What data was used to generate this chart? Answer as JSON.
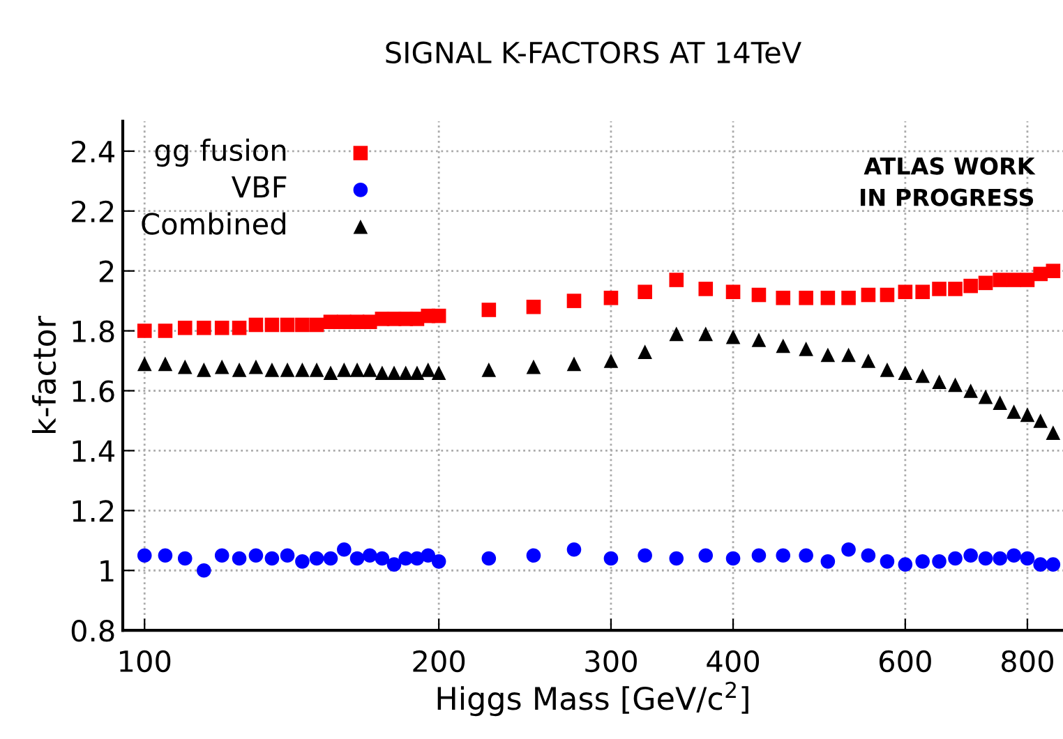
{
  "chart_data": {
    "type": "scatter",
    "title": "SIGNAL K-FACTORS AT 14TeV",
    "xlabel": "Higgs Mass [GeV/c$^{2}$]",
    "ylabel": "k-factor",
    "x": [
      100,
      105,
      110,
      115,
      120,
      125,
      130,
      135,
      140,
      145,
      150,
      155,
      160,
      165,
      170,
      175,
      180,
      185,
      190,
      195,
      200,
      225,
      250,
      275,
      300,
      325,
      350,
      375,
      400,
      425,
      450,
      475,
      500,
      525,
      550,
      575,
      600,
      625,
      650,
      675,
      700,
      725,
      750,
      775,
      800,
      825,
      850
    ],
    "series": [
      {
        "name": "gg fusion",
        "color": "#ff0000",
        "marker": "square",
        "values": [
          1.8,
          1.8,
          1.81,
          1.81,
          1.81,
          1.81,
          1.82,
          1.82,
          1.82,
          1.82,
          1.82,
          1.83,
          1.83,
          1.83,
          1.83,
          1.84,
          1.84,
          1.84,
          1.84,
          1.85,
          1.85,
          1.87,
          1.88,
          1.9,
          1.91,
          1.93,
          1.97,
          1.94,
          1.93,
          1.92,
          1.91,
          1.91,
          1.91,
          1.91,
          1.92,
          1.92,
          1.93,
          1.93,
          1.94,
          1.94,
          1.95,
          1.96,
          1.97,
          1.97,
          1.97,
          1.99,
          2.0
        ]
      },
      {
        "name": "VBF",
        "color": "#0000ff",
        "marker": "circle",
        "values": [
          1.05,
          1.05,
          1.04,
          1.0,
          1.05,
          1.04,
          1.05,
          1.04,
          1.05,
          1.03,
          1.04,
          1.04,
          1.07,
          1.04,
          1.05,
          1.04,
          1.02,
          1.04,
          1.04,
          1.05,
          1.03,
          1.04,
          1.05,
          1.07,
          1.04,
          1.05,
          1.04,
          1.05,
          1.04,
          1.05,
          1.05,
          1.05,
          1.03,
          1.07,
          1.05,
          1.03,
          1.02,
          1.03,
          1.03,
          1.04,
          1.05,
          1.04,
          1.04,
          1.05,
          1.04,
          1.02,
          1.02
        ]
      },
      {
        "name": "Combined",
        "color": "#000000",
        "marker": "triangle",
        "values": [
          1.69,
          1.69,
          1.68,
          1.67,
          1.68,
          1.67,
          1.68,
          1.67,
          1.67,
          1.67,
          1.67,
          1.66,
          1.67,
          1.67,
          1.67,
          1.66,
          1.66,
          1.66,
          1.66,
          1.67,
          1.66,
          1.67,
          1.68,
          1.69,
          1.7,
          1.73,
          1.79,
          1.79,
          1.78,
          1.77,
          1.75,
          1.74,
          1.72,
          1.72,
          1.7,
          1.67,
          1.66,
          1.65,
          1.63,
          1.62,
          1.6,
          1.58,
          1.56,
          1.53,
          1.52,
          1.5,
          1.46
        ]
      }
    ],
    "log": "x",
    "xlim": [
      95,
      870
    ],
    "xticks": [
      100,
      200,
      300,
      400,
      600,
      800
    ],
    "ylim": [
      0.8,
      2.5
    ],
    "yticks": [
      0.8,
      1,
      1.2,
      1.4,
      1.6,
      1.8,
      2,
      2.2,
      2.4
    ],
    "grid": true,
    "legend": "top left",
    "annotations": [
      "ATLAS WORK\nIN PROGRESS"
    ]
  }
}
